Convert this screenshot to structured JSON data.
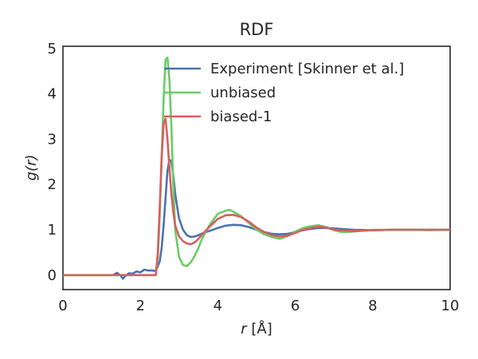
{
  "chart_data": {
    "type": "line",
    "title": "RDF",
    "xlabel_symbol": "r",
    "xlabel_unit": " [Å]",
    "ylabel_func": "g(",
    "ylabel_var": "r",
    "ylabel_close": ")",
    "xlim": [
      0,
      10
    ],
    "ylim": [
      -0.32,
      5.05
    ],
    "xticks": [
      0,
      2,
      4,
      6,
      8,
      10
    ],
    "yticks": [
      0,
      1,
      2,
      3,
      4,
      5
    ],
    "grid": false,
    "legend_position": "top-right",
    "series": [
      {
        "name": "Experiment [Skinner et al.]",
        "color": "#4c72b0",
        "x": [
          0,
          1.3,
          1.4,
          1.5,
          1.55,
          1.6,
          1.7,
          1.8,
          1.9,
          2.0,
          2.1,
          2.2,
          2.3,
          2.4,
          2.5,
          2.55,
          2.6,
          2.65,
          2.7,
          2.75,
          2.8,
          2.85,
          2.9,
          2.95,
          3.0,
          3.1,
          3.2,
          3.3,
          3.4,
          3.5,
          3.6,
          3.8,
          4.0,
          4.2,
          4.4,
          4.6,
          4.8,
          5.0,
          5.2,
          5.4,
          5.6,
          5.8,
          6.0,
          6.2,
          6.4,
          6.6,
          6.8,
          7.0,
          7.5,
          8.0,
          8.5,
          9.0,
          9.5,
          10.0
        ],
        "y": [
          0,
          0,
          0.05,
          -0.02,
          -0.08,
          -0.03,
          0.04,
          0.03,
          0.08,
          0.06,
          0.12,
          0.1,
          0.1,
          0.09,
          0.3,
          0.6,
          1.1,
          1.7,
          2.3,
          2.55,
          2.5,
          2.2,
          1.8,
          1.5,
          1.25,
          1.0,
          0.88,
          0.84,
          0.85,
          0.88,
          0.92,
          0.98,
          1.04,
          1.09,
          1.11,
          1.1,
          1.06,
          1.0,
          0.95,
          0.91,
          0.9,
          0.91,
          0.95,
          0.99,
          1.02,
          1.04,
          1.04,
          1.03,
          1.0,
          0.99,
          1.0,
          1.0,
          1.0,
          1.0
        ]
      },
      {
        "name": "unbiased",
        "color": "#6acc65",
        "x": [
          0,
          2.4,
          2.45,
          2.5,
          2.55,
          2.6,
          2.65,
          2.7,
          2.75,
          2.8,
          2.85,
          2.9,
          3.0,
          3.1,
          3.2,
          3.3,
          3.4,
          3.5,
          3.6,
          3.8,
          4.0,
          4.2,
          4.3,
          4.4,
          4.6,
          4.8,
          5.0,
          5.2,
          5.4,
          5.6,
          5.8,
          6.0,
          6.2,
          6.4,
          6.6,
          6.8,
          7.0,
          7.2,
          7.5,
          8.0,
          8.5,
          9.0,
          9.5,
          10.0
        ],
        "y": [
          0,
          0,
          0.4,
          1.3,
          2.6,
          3.9,
          4.75,
          4.8,
          4.3,
          3.3,
          2.0,
          1.0,
          0.4,
          0.22,
          0.2,
          0.28,
          0.42,
          0.6,
          0.82,
          1.12,
          1.35,
          1.42,
          1.44,
          1.4,
          1.3,
          1.15,
          1.0,
          0.9,
          0.84,
          0.8,
          0.86,
          0.96,
          1.04,
          1.08,
          1.1,
          1.06,
          0.99,
          0.95,
          0.96,
          1.0,
          1.0,
          1.0,
          0.99,
          1.0
        ]
      },
      {
        "name": "biased-1",
        "color": "#d65f5f",
        "x": [
          0,
          2.4,
          2.45,
          2.5,
          2.55,
          2.6,
          2.65,
          2.7,
          2.75,
          2.8,
          2.85,
          2.9,
          3.0,
          3.1,
          3.2,
          3.3,
          3.4,
          3.5,
          3.6,
          3.8,
          4.0,
          4.2,
          4.4,
          4.6,
          4.8,
          5.0,
          5.2,
          5.4,
          5.6,
          5.8,
          6.0,
          6.2,
          6.4,
          6.6,
          6.8,
          7.0,
          7.5,
          8.0,
          8.5,
          9.0,
          9.5,
          10.0
        ],
        "y": [
          0,
          0,
          0.5,
          1.5,
          2.6,
          3.35,
          3.45,
          3.0,
          2.35,
          1.8,
          1.4,
          1.1,
          0.85,
          0.75,
          0.7,
          0.68,
          0.72,
          0.8,
          0.9,
          1.08,
          1.24,
          1.32,
          1.33,
          1.28,
          1.18,
          1.05,
          0.95,
          0.88,
          0.85,
          0.87,
          0.93,
          1.0,
          1.04,
          1.07,
          1.05,
          1.0,
          0.97,
          0.99,
          1.0,
          1.0,
          1.0,
          1.0
        ]
      }
    ]
  }
}
